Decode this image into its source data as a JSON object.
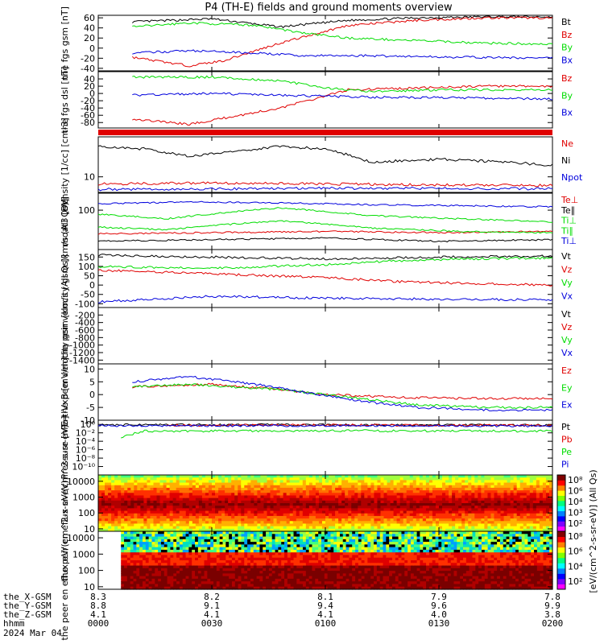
{
  "title": "P4 (TH-E) fields and ground moments overview",
  "colors": {
    "black": "#000000",
    "red": "#e00000",
    "green": "#00dd00",
    "blue": "#0000dd"
  },
  "chart_data": [
    {
      "type": "line",
      "panel": "fgs_gsm",
      "ylabel": "the fgs gsm [nT]",
      "ylim": [
        -45,
        65
      ],
      "yticks": [
        "60",
        "40",
        "20",
        "0",
        "-20",
        "-40"
      ],
      "ytick_values": [
        60,
        40,
        20,
        0,
        -20,
        -40
      ],
      "x_range_hours": [
        0.15,
        2.0
      ],
      "series": [
        {
          "name": "Bt",
          "color": "#000000",
          "x": [
            0.15,
            0.5,
            0.8,
            1.1,
            1.4,
            1.7,
            2.0
          ],
          "y": [
            52,
            58,
            42,
            55,
            60,
            62,
            62
          ]
        },
        {
          "name": "Bz",
          "color": "#e00000",
          "x": [
            0.15,
            0.4,
            0.55,
            0.8,
            1.1,
            1.4,
            1.7,
            2.0
          ],
          "y": [
            -18,
            -35,
            -25,
            10,
            45,
            55,
            60,
            60
          ]
        },
        {
          "name": "By",
          "color": "#00dd00",
          "x": [
            0.15,
            0.4,
            0.7,
            0.9,
            1.1,
            1.4,
            1.7,
            2.0
          ],
          "y": [
            42,
            50,
            45,
            30,
            20,
            15,
            10,
            8
          ]
        },
        {
          "name": "Bx",
          "color": "#0000dd",
          "x": [
            0.15,
            0.4,
            0.7,
            0.9,
            1.2,
            1.6,
            2.0
          ],
          "y": [
            -10,
            -5,
            -10,
            -15,
            -15,
            -18,
            -20
          ]
        }
      ]
    },
    {
      "type": "line",
      "panel": "fgs_dsl",
      "ylabel": "the fgs dsl [nT]",
      "ylim": [
        -95,
        60
      ],
      "yticks": [
        "40",
        "20",
        "0",
        "-20",
        "-40",
        "-60",
        "-80"
      ],
      "ytick_values": [
        40,
        20,
        0,
        -20,
        -40,
        -60,
        -80
      ],
      "x_range_hours": [
        0.15,
        2.0
      ],
      "series": [
        {
          "name": "Bz",
          "color": "#e00000",
          "x": [
            0.15,
            0.4,
            0.8,
            1.1,
            1.4,
            1.7,
            2.0
          ],
          "y": [
            -70,
            -85,
            -40,
            10,
            15,
            20,
            20
          ]
        },
        {
          "name": "By",
          "color": "#00dd00",
          "x": [
            0.15,
            0.5,
            0.8,
            1.0,
            1.2,
            1.5,
            2.0
          ],
          "y": [
            45,
            45,
            35,
            15,
            5,
            10,
            10
          ]
        },
        {
          "name": "Bx",
          "color": "#0000dd",
          "x": [
            0.15,
            0.5,
            0.8,
            1.2,
            1.6,
            2.0
          ],
          "y": [
            -5,
            0,
            -5,
            -10,
            -12,
            -15
          ]
        }
      ]
    },
    {
      "type": "line",
      "panel": "density",
      "ylabel": "Density [1/cc] [cm-3]",
      "ylim": [
        7,
        25
      ],
      "log": true,
      "yticks": [
        "10"
      ],
      "ytick_values": [
        10
      ],
      "x_range_hours": [
        0,
        2.0
      ],
      "series": [
        {
          "name": "Ne",
          "color": "#e00000",
          "x": [
            0,
            0.5,
            1.0,
            1.5,
            2.0
          ],
          "y": [
            8.5,
            8.7,
            8.5,
            8.3,
            8.2
          ]
        },
        {
          "name": "Ni",
          "color": "#000000",
          "x": [
            0,
            0.2,
            0.4,
            0.8,
            1.0,
            1.2,
            1.5,
            1.8,
            2.0
          ],
          "y": [
            20,
            19,
            16,
            20,
            19,
            14,
            15,
            14,
            13
          ]
        },
        {
          "name": "Npot",
          "color": "#0000dd",
          "x": [
            0,
            0.5,
            1.0,
            1.5,
            2.0
          ],
          "y": [
            7.5,
            7.6,
            7.7,
            7.7,
            7.6
          ]
        }
      ]
    },
    {
      "type": "line",
      "panel": "temperature",
      "ylabel": "moat3 [eV]",
      "ylim": [
        20,
        200
      ],
      "log": true,
      "yticks": [
        "100"
      ],
      "ytick_values": [
        100
      ],
      "x_range_hours": [
        0,
        2.0
      ],
      "series": [
        {
          "name": "Te⊥",
          "color": "#e00000",
          "x": [
            0,
            0.5,
            1.0,
            1.5,
            2.0
          ],
          "y": [
            38,
            40,
            42,
            40,
            42
          ]
        },
        {
          "name": "Te∥",
          "color": "#000000",
          "x": [
            0,
            0.5,
            1.0,
            1.5,
            2.0
          ],
          "y": [
            28,
            30,
            32,
            28,
            30
          ]
        },
        {
          "name": "Ti⊥",
          "color": "#00dd00",
          "x": [
            0,
            0.3,
            0.8,
            1.2,
            1.6,
            2.0
          ],
          "y": [
            85,
            70,
            110,
            80,
            70,
            62
          ]
        },
        {
          "name": "Ti∥",
          "color": "#00dd00",
          "x": [
            0,
            0.3,
            0.8,
            1.2,
            1.6,
            2.0
          ],
          "y": [
            50,
            45,
            65,
            48,
            42,
            40
          ]
        },
        {
          "name": "Ti⊥",
          "color": "#0000dd",
          "x": [
            0,
            0.4,
            0.8,
            1.2,
            1.6,
            2.0
          ],
          "y": [
            130,
            140,
            135,
            125,
            120,
            115
          ]
        }
      ]
    },
    {
      "type": "line",
      "panel": "peir_velocity",
      "ylabel": "the peir velocity gsm [km/s (All Qs)]",
      "ylim": [
        -120,
        190
      ],
      "yticks": [
        "150",
        "100",
        "50",
        "0",
        "-50",
        "-100"
      ],
      "ytick_values": [
        150,
        100,
        50,
        0,
        -50,
        -100
      ],
      "x_range_hours": [
        0,
        2.0
      ],
      "series": [
        {
          "name": "Vt",
          "color": "#000000",
          "x": [
            0,
            0.5,
            1.0,
            1.5,
            2.0
          ],
          "y": [
            160,
            150,
            140,
            150,
            155
          ]
        },
        {
          "name": "Vz",
          "color": "#e00000",
          "x": [
            0,
            0.5,
            1.0,
            1.3,
            1.6,
            2.0
          ],
          "y": [
            80,
            60,
            40,
            20,
            10,
            0
          ]
        },
        {
          "name": "Vy",
          "color": "#00dd00",
          "x": [
            0,
            0.5,
            1.0,
            1.3,
            1.6,
            2.0
          ],
          "y": [
            100,
            90,
            110,
            130,
            140,
            145
          ]
        },
        {
          "name": "Vx",
          "color": "#0000dd",
          "x": [
            0,
            0.5,
            1.0,
            1.5,
            2.0
          ],
          "y": [
            -90,
            -60,
            -70,
            -75,
            -80
          ]
        }
      ]
    },
    {
      "type": "line",
      "panel": "peer_velocity",
      "ylabel": "the peer velocity gsm [km/s (All Qs)]",
      "ylim": [
        -1500,
        0
      ],
      "yticks": [
        "-200",
        "-400",
        "-600",
        "-800",
        "-1000",
        "-1200",
        "-1400"
      ],
      "ytick_values": [
        -200,
        -400,
        -600,
        -800,
        -1000,
        -1200,
        -1400
      ],
      "x_range_hours": [
        0,
        2.0
      ],
      "legend": [
        "Vt",
        "Vz",
        "Vy",
        "Vx"
      ],
      "series": []
    },
    {
      "type": "line",
      "panel": "efield",
      "ylabel": "E=-VxB [mV/m]",
      "ylim": [
        -10,
        12
      ],
      "yticks": [
        "10",
        "5",
        "0",
        "-5",
        "-10"
      ],
      "ytick_values": [
        10,
        5,
        0,
        -5,
        -10
      ],
      "x_range_hours": [
        0.15,
        2.0
      ],
      "series": [
        {
          "name": "Ez",
          "color": "#e00000",
          "x": [
            0.15,
            0.5,
            0.8,
            1.0,
            1.3,
            1.6,
            2.0
          ],
          "y": [
            3,
            4,
            2,
            0,
            -1,
            -1.5,
            -1.5
          ]
        },
        {
          "name": "Ey",
          "color": "#00dd00",
          "x": [
            0.15,
            0.4,
            0.8,
            1.0,
            1.2,
            1.4,
            1.7,
            2.0
          ],
          "y": [
            3,
            4,
            2,
            0,
            -2,
            -4,
            -5,
            -5
          ]
        },
        {
          "name": "Ex",
          "color": "#0000dd",
          "x": [
            0.15,
            0.4,
            0.7,
            0.9,
            1.2,
            1.4,
            1.7,
            2.0
          ],
          "y": [
            5,
            7,
            4,
            1,
            -3,
            -5,
            -6,
            -6
          ]
        }
      ]
    },
    {
      "type": "line",
      "panel": "pressure",
      "ylabel": "Pressure [nPa]",
      "ylim": [
        -12,
        1
      ],
      "log": true,
      "yticks": [
        "10⁰",
        "10⁻²",
        "10⁻⁴",
        "10⁻⁶",
        "10⁻⁸",
        "10⁻¹⁰"
      ],
      "ytick_values": [
        0,
        -2,
        -4,
        -6,
        -8,
        -10
      ],
      "x_range_hours": [
        0,
        2.0
      ],
      "series": [
        {
          "name": "Pt",
          "color": "#000000",
          "x": [
            0,
            1.0,
            2.0
          ],
          "y": [
            -0.1,
            -0.1,
            -0.2
          ]
        },
        {
          "name": "Pb",
          "color": "#e00000",
          "x": [
            0.3,
            1.0,
            2.0
          ],
          "y": [
            -0.2,
            -0.15,
            -0.25
          ]
        },
        {
          "name": "Pe",
          "color": "#00dd00",
          "x": [
            0.1,
            0.2,
            1.0,
            2.0
          ],
          "y": [
            -3,
            -1.6,
            -1.5,
            -1.6
          ]
        },
        {
          "name": "Pi",
          "color": "#0000dd",
          "x": [
            0,
            1.0,
            2.0
          ],
          "y": [
            -0.3,
            -0.3,
            -0.4
          ]
        }
      ]
    },
    {
      "type": "heatmap",
      "panel": "peir_eflux",
      "ylabel": "the peir en eflux eV/(cm^2-s-sr-eV)",
      "yticks": [
        "10000",
        "1000",
        "100",
        "10"
      ],
      "ytick_values": [
        10000,
        1000,
        100,
        10
      ],
      "ylim": [
        7,
        25000
      ],
      "x_range_hours": [
        0,
        2.0
      ],
      "colorbar_ticks": [
        "10⁸",
        "10⁶",
        "10⁴",
        "10³",
        "10²"
      ]
    },
    {
      "type": "heatmap",
      "panel": "peer_eflux",
      "ylabel": "the peer en eflux eV/(cm^2-s-sr-eV)",
      "yticks": [
        "10000",
        "1000",
        "100",
        "10"
      ],
      "ytick_values": [
        10000,
        1000,
        100,
        10
      ],
      "ylim": [
        7,
        25000
      ],
      "x_range_hours": [
        0.1,
        2.0
      ],
      "colorbar_ticks": [
        "10⁸",
        "10⁶",
        "10⁴",
        "10²"
      ]
    }
  ],
  "colorbar_label": "[eV/(cm^2-s-sr-eV)] (All Qs)",
  "x_axis": {
    "rows": [
      {
        "label": "the_X-GSM",
        "values": [
          "8.3",
          "8.2",
          "8.1",
          "7.9",
          "7.8"
        ]
      },
      {
        "label": "the_Y-GSM",
        "values": [
          "8.8",
          "9.1",
          "9.4",
          "9.6",
          "9.9"
        ]
      },
      {
        "label": "the_Z-GSM",
        "values": [
          "4.1",
          "4.1",
          "4.1",
          "4.0",
          "3.8"
        ]
      },
      {
        "label": "hhmm",
        "values": [
          "0000",
          "0030",
          "0100",
          "0130",
          "0200"
        ]
      }
    ],
    "date": "2024 Mar 04"
  }
}
